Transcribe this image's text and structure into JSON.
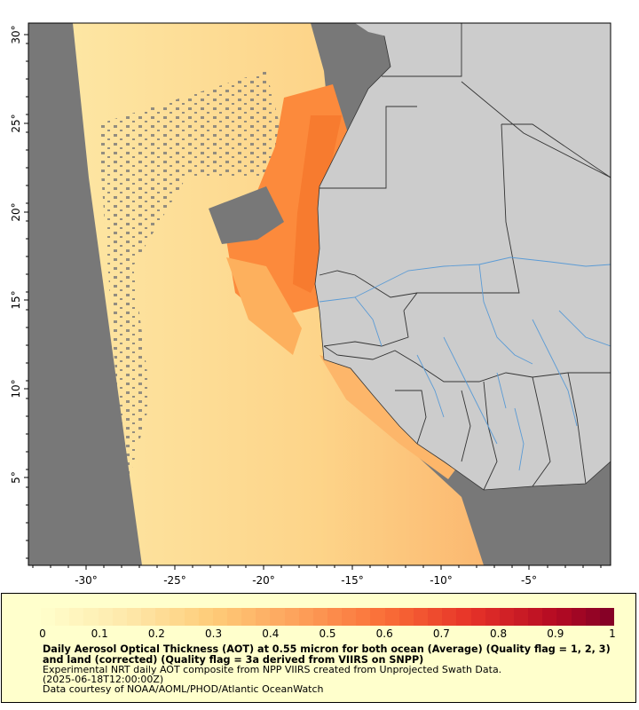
{
  "map": {
    "lat_labels": [
      "30°",
      "25°",
      "20°",
      "15°",
      "10°",
      "5°"
    ],
    "lon_labels": [
      "-30°",
      "-25°",
      "-20°",
      "-15°",
      "-10°",
      "-5°"
    ],
    "colors": {
      "ocean_nodata": "#787878",
      "land": "#cccccc",
      "border": "#333333",
      "river": "#5b9bd5"
    }
  },
  "colorbar": {
    "labels": [
      "0",
      "0.1",
      "0.2",
      "0.3",
      "0.4",
      "0.5",
      "0.6",
      "0.7",
      "0.8",
      "0.9",
      "1"
    ],
    "min": 0,
    "max": 1
  },
  "caption": {
    "title": "Daily Aerosol Optical Thickness (AOT) at 0.55 micron for both ocean (Average) (Quality flag = 1, 2, 3) and land (corrected) (Quality flag = 3a derived from VIIRS on SNPP)",
    "line1": "Experimental NRT daily AOT composite from NPP VIIRS created from Unprojected Swath Data.",
    "line2": "(2025-06-18T12:00:00Z)",
    "line3": "Data courtesy of NOAA/AOML/PHOD/Atlantic OceanWatch"
  }
}
